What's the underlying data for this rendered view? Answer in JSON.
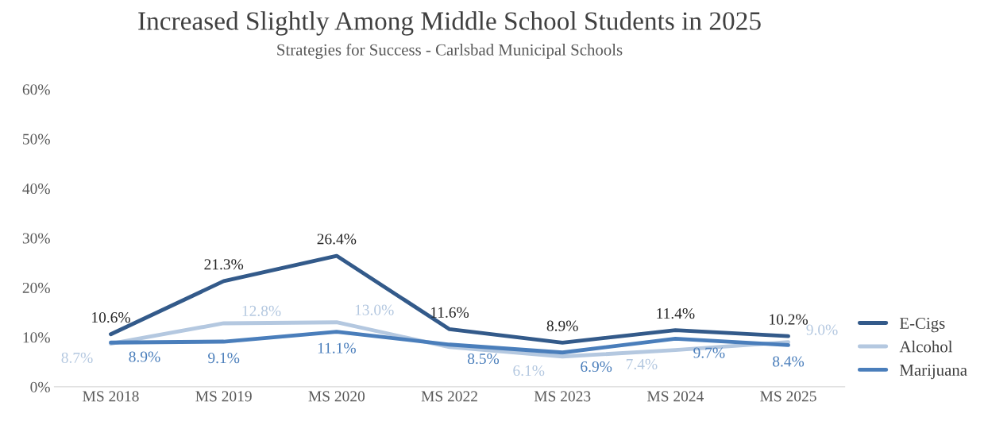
{
  "chart_data": {
    "type": "line",
    "title": "Increased Slightly Among Middle School Students in 2025",
    "subtitle": "Strategies for Success - Carlsbad Municipal Schools",
    "categories": [
      "MS 2018",
      "MS 2019",
      "MS 2020",
      "MS 2022",
      "MS 2023",
      "MS 2024",
      "MS 2025"
    ],
    "series": [
      {
        "name": "E-Cigs",
        "color": "#335a8a",
        "values": [
          10.6,
          21.3,
          26.4,
          11.6,
          8.9,
          11.4,
          10.2
        ],
        "value_labels": [
          "10.6%",
          "21.3%",
          "26.4%",
          "11.6%",
          "8.9%",
          "11.4%",
          "10.2%"
        ]
      },
      {
        "name": "Alcohol",
        "color": "#b4c8e0",
        "values": [
          8.7,
          12.8,
          13.0,
          8.0,
          6.1,
          7.4,
          9.0
        ],
        "value_labels": [
          "8.7%",
          "12.8%",
          "13.0%",
          null,
          "6.1%",
          "7.4%",
          "9.0%"
        ]
      },
      {
        "name": "Marijuana",
        "color": "#4a7ebb",
        "values": [
          8.9,
          9.1,
          11.1,
          8.5,
          6.9,
          9.7,
          8.4
        ],
        "value_labels": [
          "8.9%",
          "9.1%",
          "11.1%",
          "8.5%",
          "6.9%",
          "9.7%",
          "8.4%"
        ]
      }
    ],
    "ylim": [
      0,
      60
    ],
    "yticks": [
      {
        "value": 0,
        "label": "0%"
      },
      {
        "value": 10,
        "label": "10%"
      },
      {
        "value": 20,
        "label": "20%"
      },
      {
        "value": 30,
        "label": "30%"
      },
      {
        "value": 40,
        "label": "40%"
      },
      {
        "value": 50,
        "label": "50%"
      },
      {
        "value": 60,
        "label": "60%"
      }
    ],
    "grid": false,
    "legend": "right",
    "marker": "none",
    "line_style": "solid"
  }
}
